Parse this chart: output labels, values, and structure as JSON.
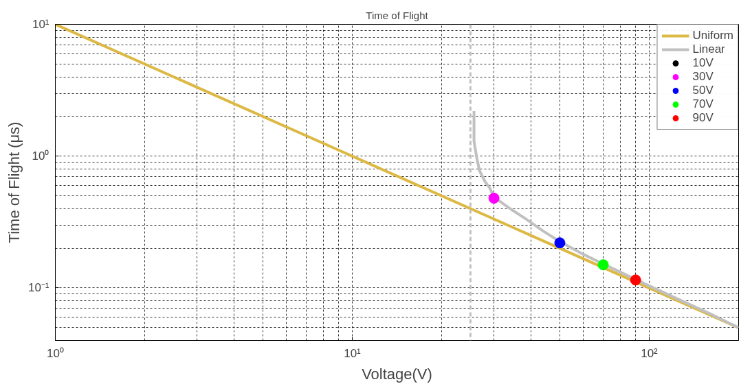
{
  "chart_data": {
    "type": "line",
    "title": "Time of Flight",
    "xlabel": "Voltage(V)",
    "ylabel": "Time of Flight (μs)",
    "log": "xy",
    "grid": true,
    "legend": "top right",
    "xlim": [
      1,
      200
    ],
    "ylim": [
      0.04,
      10
    ],
    "xticks": [
      {
        "value": 1,
        "label": "10⁰"
      },
      {
        "value": 10,
        "label": "10¹"
      },
      {
        "value": 100,
        "label": "10²"
      }
    ],
    "yticks": [
      {
        "value": 0.1,
        "label": "10⁻¹"
      },
      {
        "value": 1,
        "label": "10⁰"
      },
      {
        "value": 10,
        "label": "10¹"
      }
    ],
    "ref_lines": [
      {
        "axis": "x",
        "value": 25,
        "color": "#c0c0c0",
        "line_style": "dashed"
      }
    ],
    "series": [
      {
        "name": "Uniform",
        "color": "#dcb844",
        "x": [
          1,
          200
        ],
        "values": [
          10,
          0.05
        ]
      },
      {
        "name": "Linear",
        "color": "#c0c0c0",
        "x": [
          25.7,
          25.7,
          26.2,
          26.8,
          28,
          29,
          30,
          34,
          38,
          44,
          50,
          60,
          70,
          80,
          90,
          110,
          130,
          160,
          200
        ],
        "values": [
          2.2,
          1.3,
          1.0,
          0.78,
          0.64,
          0.577,
          0.49,
          0.4,
          0.34,
          0.27,
          0.225,
          0.18,
          0.152,
          0.132,
          0.116,
          0.094,
          0.079,
          0.064,
          0.05
        ]
      },
      {
        "name": "10V",
        "type": "scatter",
        "marker": "circle",
        "color": "#000000",
        "values": [
          null
        ]
      },
      {
        "name": "30V",
        "type": "scatter",
        "marker": "circle",
        "color": "#ff00ff",
        "x": [
          30
        ],
        "values": [
          0.48
        ]
      },
      {
        "name": "50V",
        "type": "scatter",
        "marker": "circle",
        "color": "#0000ff",
        "x": [
          50
        ],
        "values": [
          0.22
        ]
      },
      {
        "name": "70V",
        "type": "scatter",
        "marker": "circle",
        "color": "#00ff00",
        "x": [
          70
        ],
        "values": [
          0.15
        ]
      },
      {
        "name": "90V",
        "type": "scatter",
        "marker": "circle",
        "color": "#ff0000",
        "x": [
          90
        ],
        "values": [
          0.115
        ]
      }
    ]
  }
}
